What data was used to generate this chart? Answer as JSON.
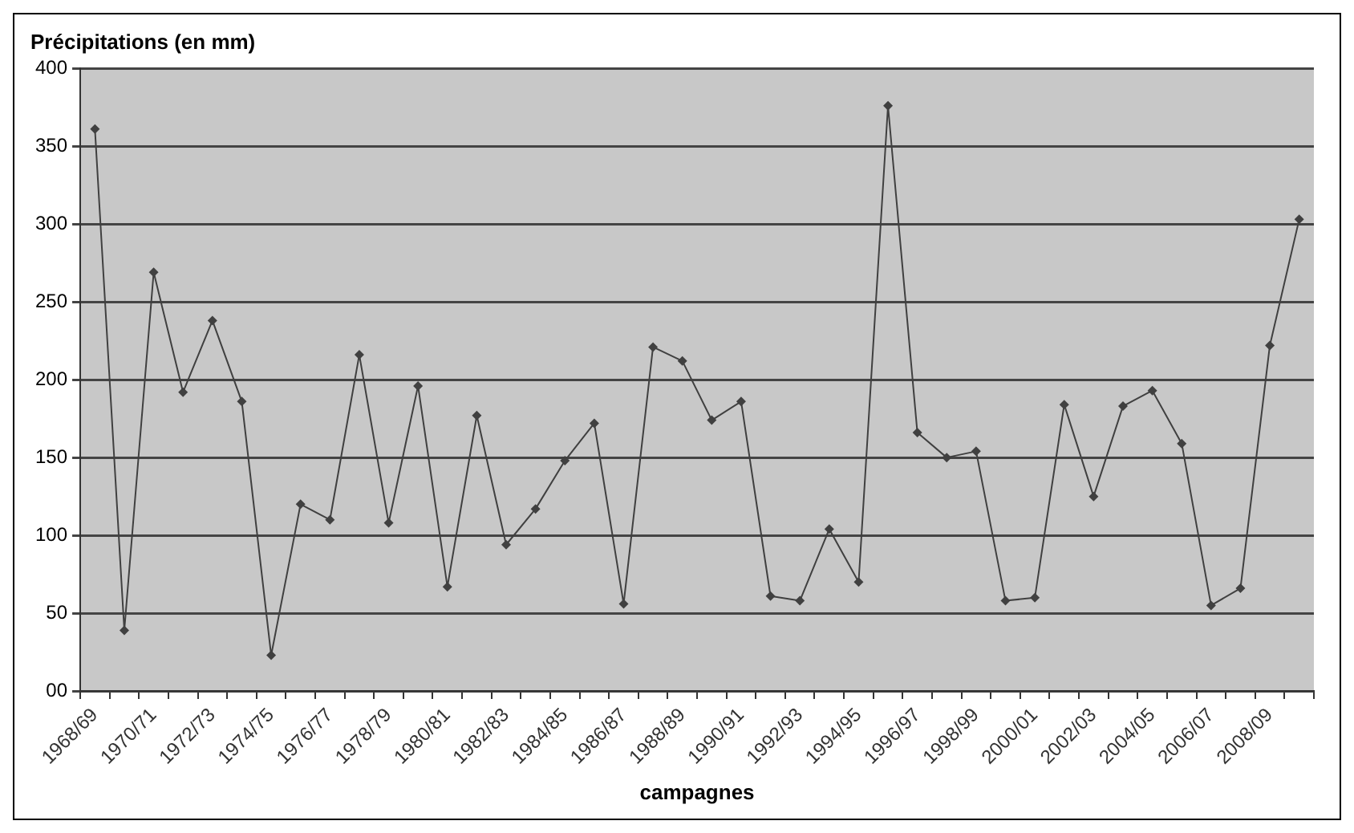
{
  "chart_data": {
    "type": "line",
    "ylabel": "Précipitations (en mm)",
    "xlabel": "campagnes",
    "categories": [
      "1968/69",
      null,
      "1970/71",
      null,
      "1972/73",
      null,
      "1974/75",
      null,
      "1976/77",
      null,
      "1978/79",
      null,
      "1980/81",
      null,
      "1982/83",
      null,
      "1984/85",
      null,
      "1986/87",
      null,
      "1988/89",
      null,
      "1990/91",
      null,
      "1992/93",
      null,
      "1994/95",
      null,
      "1996/97",
      null,
      "1998/99",
      null,
      "2000/01",
      null,
      "2002/03",
      null,
      "2004/05",
      null,
      "2006/07",
      null,
      "2008/09",
      null
    ],
    "series": [
      {
        "color": "#404040",
        "values": [
          361,
          39,
          269,
          192,
          238,
          186,
          23,
          120,
          110,
          216,
          108,
          196,
          67,
          177,
          94,
          117,
          148,
          172,
          56,
          221,
          212,
          174,
          186,
          61,
          58,
          104,
          70,
          376,
          166,
          150,
          154,
          58,
          60,
          184,
          125,
          183,
          193,
          159,
          55,
          66,
          222,
          303
        ]
      }
    ],
    "ylim": [
      0,
      400
    ],
    "yticks": [
      {
        "value": 0,
        "label": "00"
      },
      50,
      100,
      150,
      200,
      250,
      300,
      350,
      400
    ],
    "grid": "y",
    "legend": false,
    "marker": "diamond",
    "line_style": "solid"
  }
}
